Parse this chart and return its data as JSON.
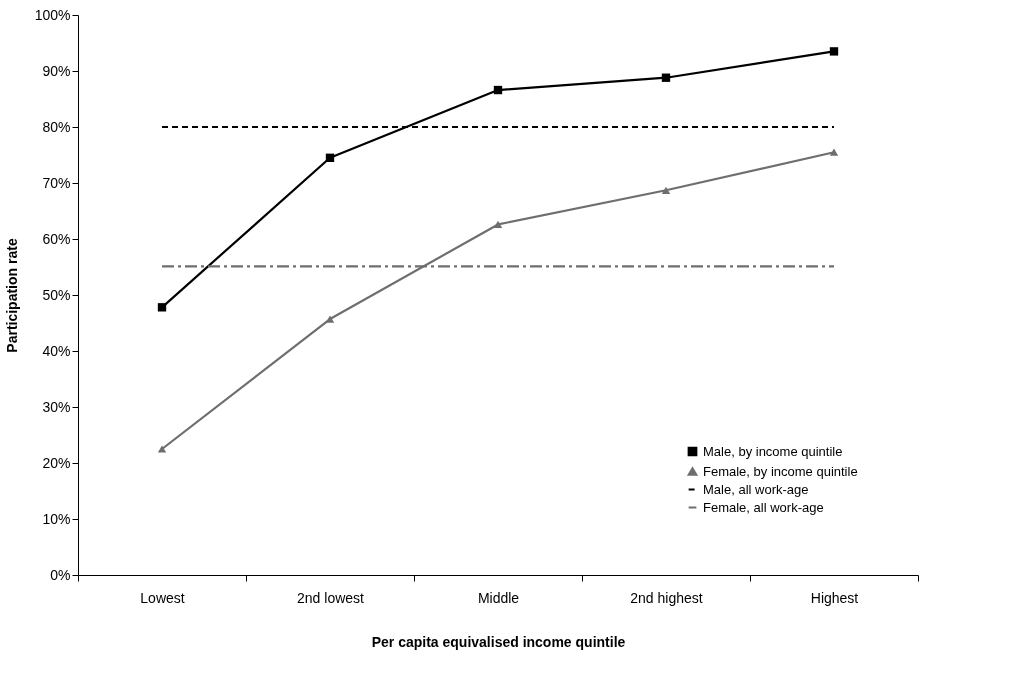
{
  "chart_data": {
    "type": "line",
    "xlabel": "Per capita equivalised income quintile",
    "ylabel": "Participation rate",
    "categories": [
      "Lowest",
      "2nd lowest",
      "Middle",
      "2nd highest",
      "Highest"
    ],
    "series": [
      {
        "name": "Male, by income quintile",
        "color": "#000000",
        "marker": "square",
        "line_style": "solid",
        "values": [
          47.8,
          74.5,
          86.6,
          88.8,
          93.5
        ]
      },
      {
        "name": "Female, by income quintile",
        "color": "#6e6e6e",
        "marker": "triangle",
        "line_style": "solid",
        "values": [
          22.5,
          45.7,
          62.6,
          68.7,
          75.5
        ]
      },
      {
        "name": "Male, all work-age",
        "color": "#000000",
        "marker": "none",
        "line_style": "dashed",
        "values": [
          80,
          80,
          80,
          80,
          80
        ]
      },
      {
        "name": "Female, all work-age",
        "color": "#6e6e6e",
        "marker": "none",
        "line_style": "dashdot",
        "values": [
          55.1,
          55.1,
          55.1,
          55.1,
          55.1
        ]
      }
    ],
    "ylim": [
      0,
      100
    ],
    "yticks": [
      {
        "value": 0,
        "label": "0%"
      },
      {
        "value": 10,
        "label": "10%"
      },
      {
        "value": 20,
        "label": "20%"
      },
      {
        "value": 30,
        "label": "30%"
      },
      {
        "value": 40,
        "label": "40%"
      },
      {
        "value": 50,
        "label": "50%"
      },
      {
        "value": 60,
        "label": "60%"
      },
      {
        "value": 70,
        "label": "70%"
      },
      {
        "value": 80,
        "label": "80%"
      },
      {
        "value": 90,
        "label": "90%"
      },
      {
        "value": 100,
        "label": "100%"
      }
    ],
    "grid": false,
    "legend": "bottom right"
  }
}
